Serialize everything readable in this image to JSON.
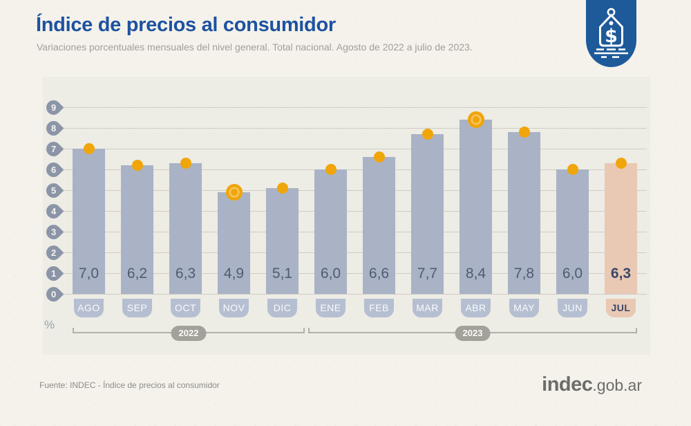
{
  "header": {
    "title": "Índice de precios al consumidor",
    "subtitle": "Variaciones porcentuales mensuales del nivel general. Total nacional. Agosto de 2022 a julio de 2023.",
    "badge_icon": "price-tag-dollar-icon"
  },
  "chart_data": {
    "type": "bar",
    "title": "Índice de precios al consumidor",
    "subtitle": "Variaciones porcentuales mensuales del nivel general. Total nacional. Agosto de 2022 a julio de 2023.",
    "ylabel": "%",
    "ylim": [
      0,
      9
    ],
    "yticks": [
      0,
      1,
      2,
      3,
      4,
      5,
      6,
      7,
      8,
      9
    ],
    "grid": true,
    "legend": "none",
    "categories": [
      "AGO",
      "SEP",
      "OCT",
      "NOV",
      "DIC",
      "ENE",
      "FEB",
      "MAR",
      "ABR",
      "MAY",
      "JUN",
      "JUL"
    ],
    "values": [
      7.0,
      6.2,
      6.3,
      4.9,
      5.1,
      6.0,
      6.6,
      7.7,
      8.4,
      7.8,
      6.0,
      6.3
    ],
    "value_labels": [
      "7,0",
      "6,2",
      "6,3",
      "4,9",
      "5,1",
      "6,0",
      "6,6",
      "7,7",
      "8,4",
      "7,8",
      "6,0",
      "6,3"
    ],
    "year_groups": [
      {
        "label": "2022",
        "start_index": 0,
        "end_index": 4
      },
      {
        "label": "2023",
        "start_index": 5,
        "end_index": 11
      }
    ],
    "ringed_marker_months": [
      "NOV",
      "ABR"
    ],
    "highlighted_month": "JUL"
  },
  "colors": {
    "page_bg": "#f5f2eb",
    "panel_bg": "#edece5",
    "title_blue": "#1d52a0",
    "badge_blue": "#1e5a9a",
    "bar": "#a9b3c5",
    "bar_highlight": "#e9c9b3",
    "tab": "#b5bfd1",
    "tab_highlight": "#e9c9b3",
    "tab_highlight_text": "#3b4768",
    "marker_orange": "#f0a50a",
    "marker_ring": "#f7c55f",
    "pin": "#8c94a7",
    "grid": "#cfccc5",
    "value_text": "#4f5b74",
    "value_text_highlight": "#3b4768",
    "bracket": "#b2b0a9",
    "year_pill": "#a3a19a"
  },
  "footer": {
    "source": "Fuente: INDEC - Índice de precios al consumidor",
    "logo_main": "indec",
    "logo_suffix": ".gob.ar"
  }
}
